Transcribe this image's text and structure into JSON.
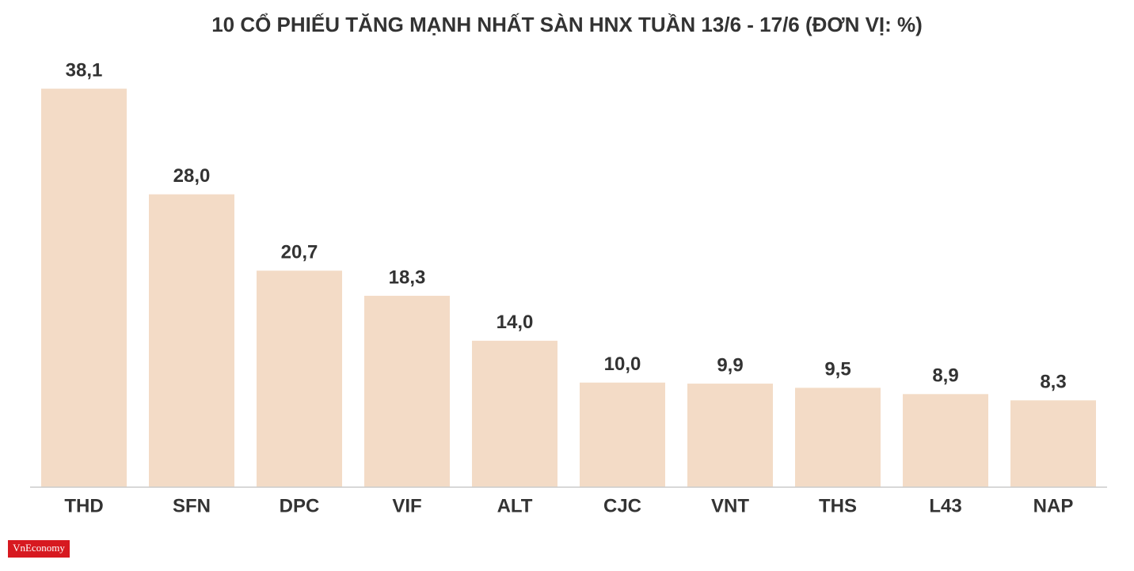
{
  "chart_data": {
    "type": "bar",
    "title": "10 CỔ PHIẾU TĂNG MẠNH NHẤT SÀN HNX TUẦN 13/6 - 17/6 (ĐƠN VỊ: %)",
    "categories": [
      "THD",
      "SFN",
      "DPC",
      "VIF",
      "ALT",
      "CJC",
      "VNT",
      "THS",
      "L43",
      "NAP"
    ],
    "values": [
      38.1,
      28.0,
      20.7,
      18.3,
      14.0,
      10.0,
      9.9,
      9.5,
      8.9,
      8.3
    ],
    "value_labels": [
      "38,1",
      "28,0",
      "20,7",
      "18,3",
      "14,0",
      "10,0",
      "9,9",
      "9,5",
      "8,9",
      "8,3"
    ],
    "color": "#f3dbc6",
    "ylim": [
      0,
      40
    ],
    "grid": false
  },
  "source": "VnEconomy"
}
